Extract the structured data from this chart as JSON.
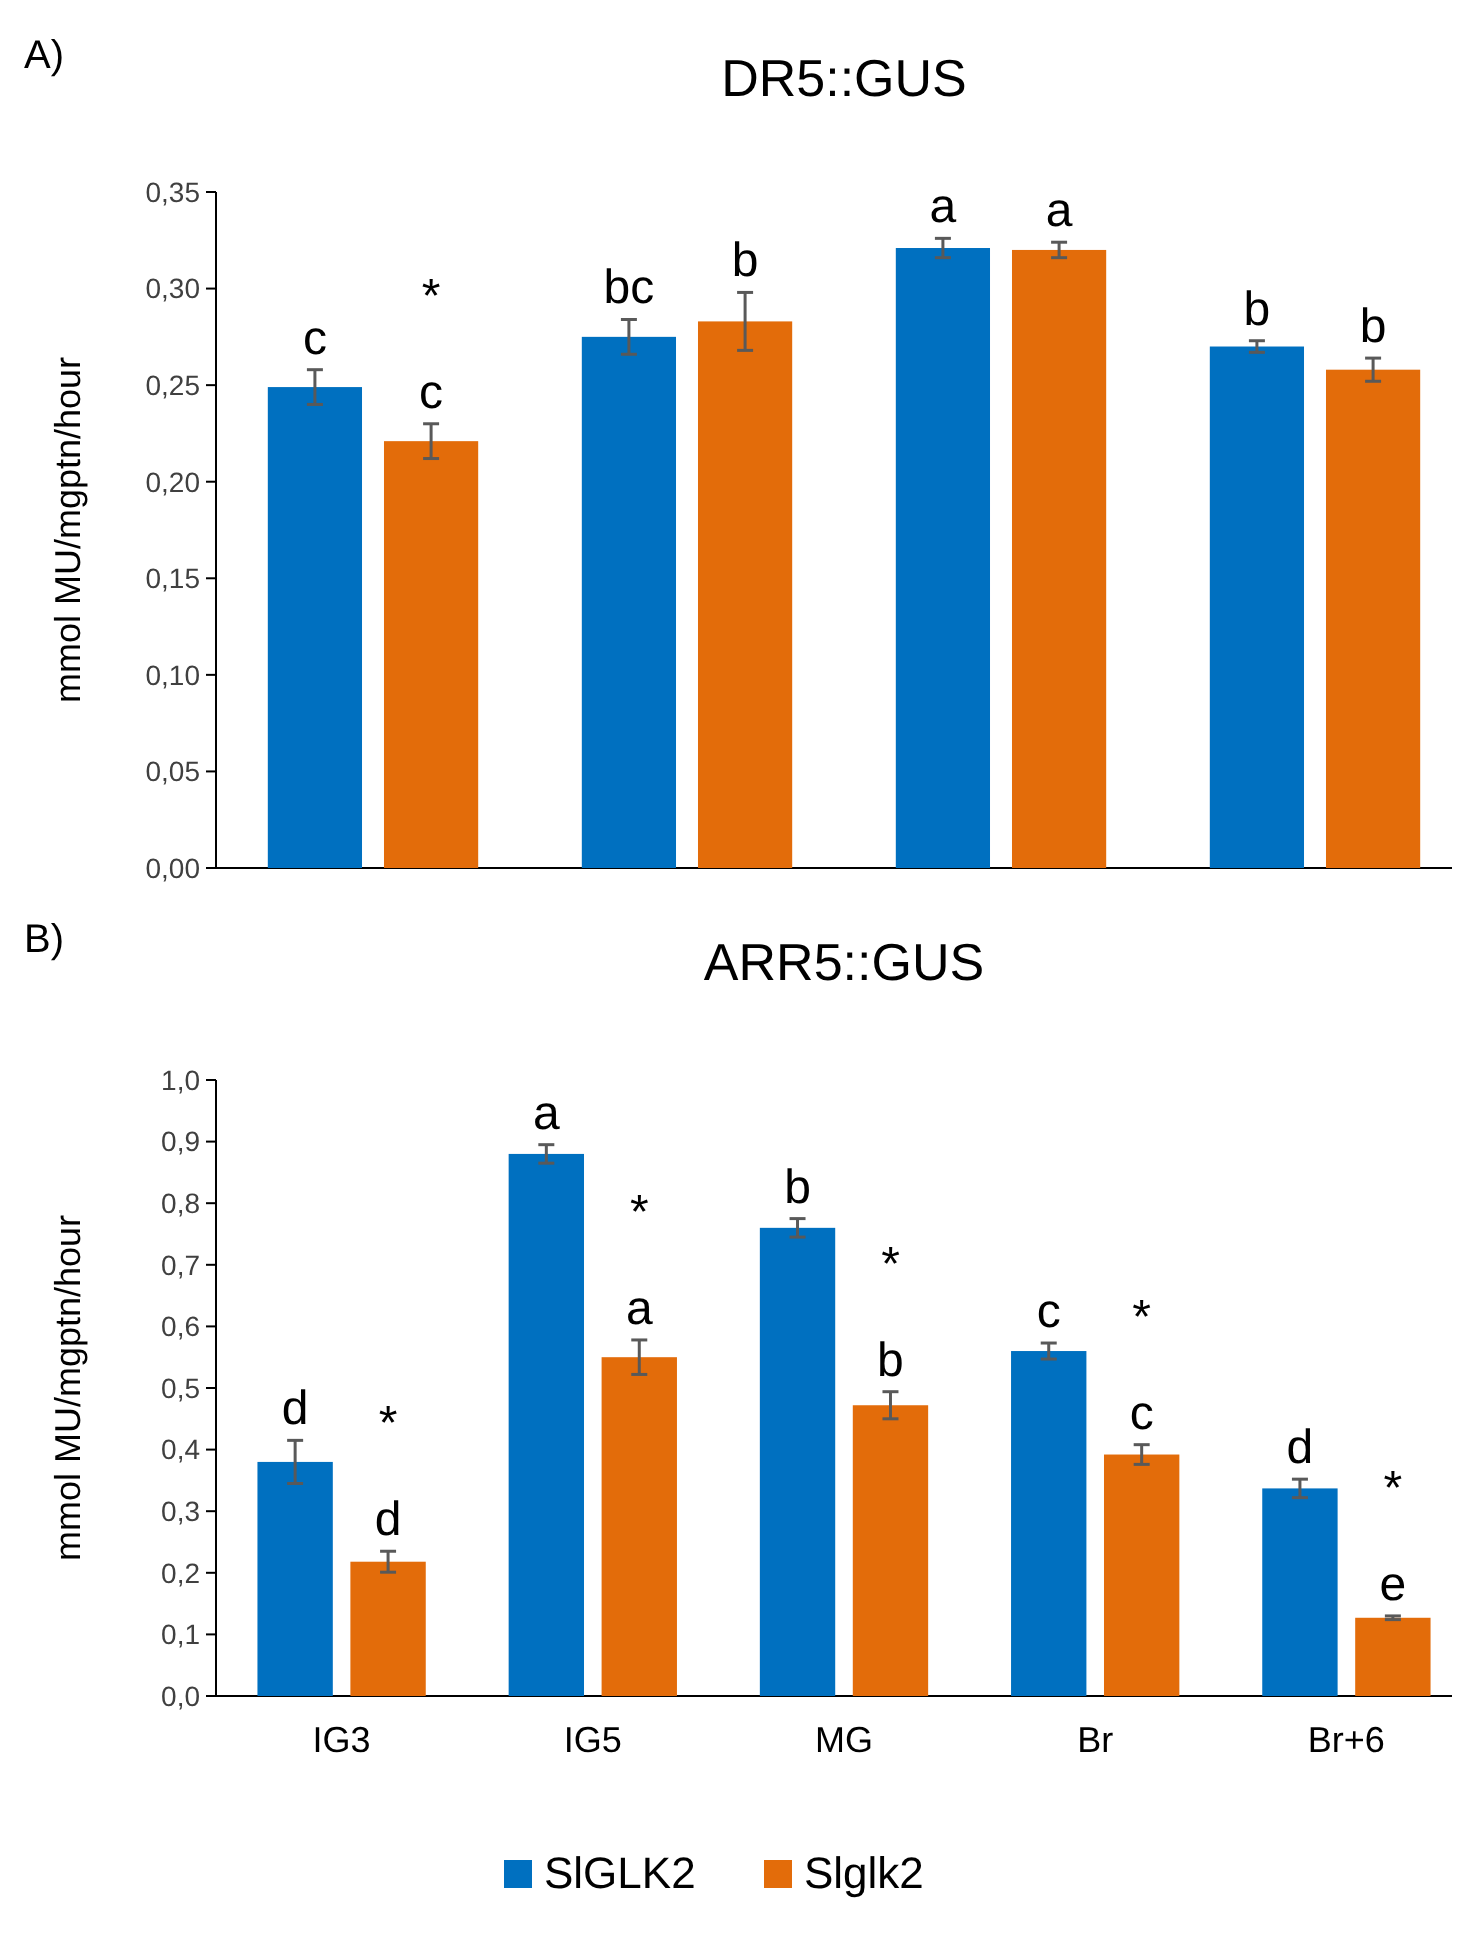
{
  "chart_data": [
    {
      "type": "bar",
      "title": "DR5::GUS",
      "annotations": [
        "A)"
      ],
      "ylabel": "mmol MU/mgptn/hour",
      "categories": [
        null,
        null,
        null,
        null
      ],
      "ylim": [
        0,
        0.35
      ],
      "yticks": [
        {
          "value": 0,
          "label": "0,00"
        },
        {
          "value": 0.05,
          "label": "0,05"
        },
        {
          "value": 0.1,
          "label": "0,10"
        },
        {
          "value": 0.15,
          "label": "0,15"
        },
        {
          "value": 0.2,
          "label": "0,20"
        },
        {
          "value": 0.25,
          "label": "0,25"
        },
        {
          "value": 0.3,
          "label": "0,30"
        },
        {
          "value": 0.35,
          "label": "0,35"
        }
      ],
      "grid": false,
      "legend": false,
      "series": [
        {
          "color": "#0070c0",
          "values": [
            0.249,
            0.275,
            0.321,
            0.27
          ],
          "errors": [
            0.009,
            0.009,
            0.005,
            0.003
          ],
          "value_labels": [
            "c",
            "bc",
            "a",
            "b"
          ]
        },
        {
          "color": "#e36c0a",
          "values": [
            0.221,
            0.283,
            0.32,
            0.258
          ],
          "errors": [
            0.009,
            0.015,
            0.004,
            0.006
          ],
          "value_labels": [
            "*\nc",
            "b",
            "a",
            "b"
          ]
        }
      ]
    },
    {
      "type": "bar",
      "title": "ARR5::GUS",
      "annotations": [
        "B)"
      ],
      "ylabel": "mmol MU/mgptn/hour",
      "categories": [
        "IG3",
        "IG5",
        "MG",
        "Br",
        "Br+6"
      ],
      "ylim": [
        0,
        1
      ],
      "yticks": [
        {
          "value": 0,
          "label": "0,0"
        },
        {
          "value": 0.1,
          "label": "0,1"
        },
        {
          "value": 0.2,
          "label": "0,2"
        },
        {
          "value": 0.3,
          "label": "0,3"
        },
        {
          "value": 0.4,
          "label": "0,4"
        },
        {
          "value": 0.5,
          "label": "0,5"
        },
        {
          "value": 0.6,
          "label": "0,6"
        },
        {
          "value": 0.7,
          "label": "0,7"
        },
        {
          "value": 0.8,
          "label": "0,8"
        },
        {
          "value": 0.9,
          "label": "0,9"
        },
        {
          "value": 1,
          "label": "1,0"
        }
      ],
      "grid": false,
      "legend": "bottom",
      "series": [
        {
          "name": "SlGLK2",
          "color": "#0070c0",
          "values": [
            0.38,
            0.88,
            0.76,
            0.56,
            0.337
          ],
          "errors": [
            0.035,
            0.015,
            0.015,
            0.013,
            0.015
          ],
          "value_labels": [
            "d",
            "a",
            "b",
            "c",
            "d"
          ]
        },
        {
          "name": "Slglk2",
          "color": "#e36c0a",
          "values": [
            0.218,
            0.55,
            0.472,
            0.392,
            0.127
          ],
          "errors": [
            0.017,
            0.028,
            0.022,
            0.016,
            0.003
          ],
          "value_labels": [
            "*\nd",
            "*\na",
            "*\nb",
            "*\nc",
            "*\ne"
          ]
        }
      ]
    }
  ]
}
